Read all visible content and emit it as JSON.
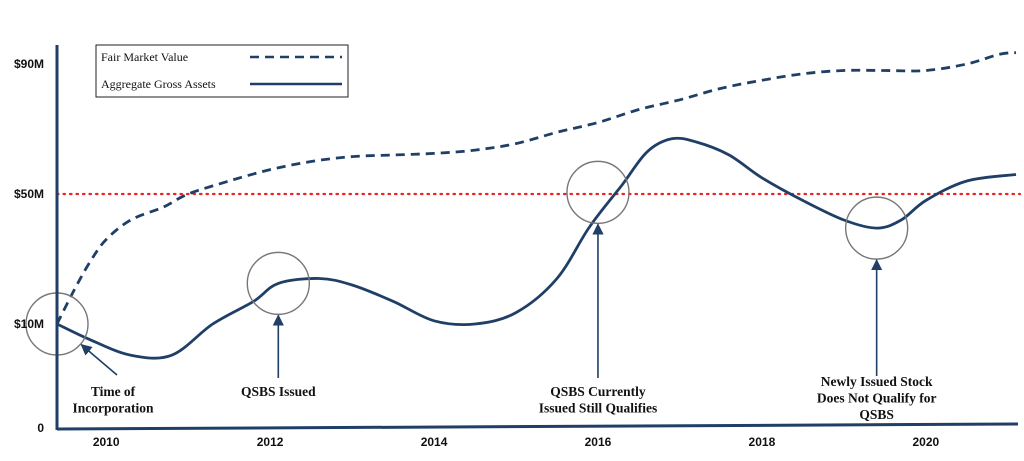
{
  "chart_data": {
    "type": "line",
    "x_range": [
      2009.4,
      2021.1
    ],
    "ylim": [
      0,
      100
    ],
    "x_ticks": [
      {
        "value": 2010,
        "label": "2010"
      },
      {
        "value": 2012,
        "label": "2012"
      },
      {
        "value": 2014,
        "label": "2014"
      },
      {
        "value": 2016,
        "label": "2016"
      },
      {
        "value": 2018,
        "label": "2018"
      },
      {
        "value": 2020,
        "label": "2020"
      }
    ],
    "y_ticks": [
      {
        "value": 0,
        "label": "0"
      },
      {
        "value": 10,
        "label": "$10M"
      },
      {
        "value": 50,
        "label": "$50M"
      },
      {
        "value": 90,
        "label": "$90M"
      }
    ],
    "grid": false,
    "legend_position": "top-left",
    "series": [
      {
        "name": "Fair Market Value",
        "style": "dashed",
        "color": "#1f3f66",
        "points": [
          [
            2009.4,
            10
          ],
          [
            2009.6,
            20
          ],
          [
            2009.8,
            29
          ],
          [
            2010.0,
            36
          ],
          [
            2010.3,
            42
          ],
          [
            2010.7,
            46
          ],
          [
            2011.0,
            50
          ],
          [
            2011.5,
            54
          ],
          [
            2012.0,
            57.5
          ],
          [
            2012.5,
            60
          ],
          [
            2013.0,
            61.5
          ],
          [
            2013.5,
            62
          ],
          [
            2014.0,
            62.5
          ],
          [
            2014.5,
            63.5
          ],
          [
            2015.0,
            65.5
          ],
          [
            2015.5,
            69
          ],
          [
            2016.0,
            72
          ],
          [
            2016.5,
            76
          ],
          [
            2017.0,
            79
          ],
          [
            2017.5,
            82.5
          ],
          [
            2018.0,
            85
          ],
          [
            2018.5,
            87
          ],
          [
            2019.0,
            88
          ],
          [
            2019.5,
            88
          ],
          [
            2020.0,
            88
          ],
          [
            2020.5,
            90
          ],
          [
            2020.9,
            93
          ],
          [
            2021.1,
            93.5
          ]
        ]
      },
      {
        "name": "Aggregate Gross Assets",
        "style": "solid",
        "color": "#1f3f66",
        "points": [
          [
            2009.4,
            10
          ],
          [
            2009.8,
            8.5
          ],
          [
            2010.3,
            7
          ],
          [
            2010.8,
            7
          ],
          [
            2011.3,
            10
          ],
          [
            2011.8,
            17
          ],
          [
            2012.1,
            22.5
          ],
          [
            2012.6,
            24
          ],
          [
            2013.0,
            22
          ],
          [
            2013.5,
            17
          ],
          [
            2014.0,
            11
          ],
          [
            2014.5,
            10
          ],
          [
            2015.0,
            13.5
          ],
          [
            2015.5,
            24
          ],
          [
            2015.9,
            40
          ],
          [
            2016.3,
            53
          ],
          [
            2016.6,
            63
          ],
          [
            2016.9,
            67
          ],
          [
            2017.2,
            66
          ],
          [
            2017.6,
            62
          ],
          [
            2018.0,
            55
          ],
          [
            2018.5,
            48
          ],
          [
            2019.0,
            42
          ],
          [
            2019.4,
            39.5
          ],
          [
            2019.7,
            42
          ],
          [
            2020.0,
            48
          ],
          [
            2020.5,
            54
          ],
          [
            2021.1,
            56
          ]
        ]
      }
    ],
    "reference_line": {
      "value": 50,
      "style": "dotted",
      "color": "#ee2222"
    },
    "highlights": [
      {
        "x": 2009.4,
        "y": 10,
        "label_lines": [
          "Time of",
          "Incorporation"
        ]
      },
      {
        "x": 2012.1,
        "y": 22.5,
        "label_lines": [
          "QSBS Issued"
        ]
      },
      {
        "x": 2016.0,
        "y": 50.5,
        "label_lines": [
          "QSBS Currently",
          "Issued Still Qualifies"
        ]
      },
      {
        "x": 2019.4,
        "y": 39.5,
        "label_lines": [
          "Newly Issued Stock",
          "Does Not Qualify for",
          "QSBS"
        ]
      }
    ]
  }
}
